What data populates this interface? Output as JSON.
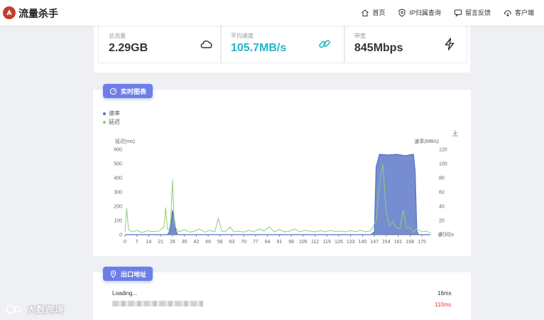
{
  "header": {
    "brand": "流量杀手",
    "nav": [
      {
        "label": "首页",
        "icon": "home-icon"
      },
      {
        "label": "IP归属查询",
        "icon": "shield-icon"
      },
      {
        "label": "留言反馈",
        "icon": "chat-icon"
      },
      {
        "label": "客户端",
        "icon": "cloud-download-icon"
      }
    ]
  },
  "stats": [
    {
      "label": "总流量",
      "value": "2.29GB",
      "icon": "cloud-icon",
      "color": "#333333"
    },
    {
      "label": "平均速度",
      "value": "105.7MB/s",
      "icon": "link-icon",
      "color": "#27b3c9"
    },
    {
      "label": "带宽",
      "value": "845Mbps",
      "icon": "lightning-icon",
      "color": "#333333"
    }
  ],
  "realtime": {
    "title": "实时图表",
    "legend": [
      {
        "name": "速率",
        "color": "#5470c6"
      },
      {
        "name": "延迟",
        "color": "#91cc75"
      }
    ],
    "download_icon": "download-icon"
  },
  "chart_data": {
    "type": "line",
    "left_axis_label": "延迟(ms)",
    "right_axis_label": "速率(MB/s)",
    "x_axis_label": "(时间)s",
    "x_ticks": [
      0,
      7,
      14,
      21,
      28,
      35,
      42,
      49,
      56,
      63,
      70,
      77,
      84,
      91,
      98,
      105,
      112,
      119,
      126,
      133,
      140,
      147,
      154,
      161,
      168,
      175
    ],
    "y_left": {
      "min": 0,
      "max": 600,
      "ticks": [
        0,
        100,
        200,
        300,
        400,
        500,
        600
      ]
    },
    "y_right": {
      "min": 0,
      "max": 120,
      "ticks": [
        0,
        20,
        40,
        60,
        80,
        100,
        120
      ]
    },
    "series": [
      {
        "name": "速率",
        "axis": "right",
        "color": "#5470c6",
        "area": true,
        "points": [
          [
            0,
            0
          ],
          [
            25,
            0
          ],
          [
            26,
            3
          ],
          [
            27,
            12
          ],
          [
            28,
            34
          ],
          [
            29,
            22
          ],
          [
            30,
            6
          ],
          [
            31,
            0
          ],
          [
            145,
            0
          ],
          [
            147,
            4
          ],
          [
            148,
            95
          ],
          [
            150,
            113
          ],
          [
            155,
            112
          ],
          [
            160,
            113
          ],
          [
            165,
            111
          ],
          [
            170,
            113
          ],
          [
            171,
            90
          ],
          [
            172,
            5
          ],
          [
            173,
            0
          ],
          [
            180,
            0
          ]
        ]
      },
      {
        "name": "延迟",
        "axis": "left",
        "color": "#91cc75",
        "area": false,
        "points": [
          [
            0,
            18
          ],
          [
            1,
            185
          ],
          [
            2,
            40
          ],
          [
            4,
            20
          ],
          [
            7,
            30
          ],
          [
            10,
            15
          ],
          [
            13,
            28
          ],
          [
            16,
            22
          ],
          [
            20,
            25
          ],
          [
            23,
            55
          ],
          [
            24,
            190
          ],
          [
            25,
            40
          ],
          [
            26,
            30
          ],
          [
            27,
            110
          ],
          [
            28,
            385
          ],
          [
            29,
            90
          ],
          [
            30,
            45
          ],
          [
            32,
            20
          ],
          [
            35,
            35
          ],
          [
            38,
            18
          ],
          [
            41,
            25
          ],
          [
            44,
            40
          ],
          [
            47,
            18
          ],
          [
            50,
            30
          ],
          [
            53,
            20
          ],
          [
            55,
            115
          ],
          [
            57,
            25
          ],
          [
            59,
            20
          ],
          [
            62,
            55
          ],
          [
            64,
            20
          ],
          [
            67,
            25
          ],
          [
            70,
            18
          ],
          [
            73,
            30
          ],
          [
            76,
            20
          ],
          [
            79,
            40
          ],
          [
            82,
            25
          ],
          [
            85,
            55
          ],
          [
            88,
            20
          ],
          [
            91,
            35
          ],
          [
            94,
            20
          ],
          [
            97,
            25
          ],
          [
            100,
            40
          ],
          [
            103,
            20
          ],
          [
            106,
            30
          ],
          [
            109,
            25
          ],
          [
            112,
            20
          ],
          [
            115,
            28
          ],
          [
            118,
            20
          ],
          [
            121,
            30
          ],
          [
            124,
            22
          ],
          [
            127,
            25
          ],
          [
            130,
            20
          ],
          [
            133,
            28
          ],
          [
            136,
            22
          ],
          [
            139,
            30
          ],
          [
            142,
            20
          ],
          [
            145,
            28
          ],
          [
            148,
            100
          ],
          [
            150,
            350
          ],
          [
            152,
            495
          ],
          [
            154,
            150
          ],
          [
            156,
            60
          ],
          [
            158,
            95
          ],
          [
            160,
            50
          ],
          [
            162,
            40
          ],
          [
            164,
            170
          ],
          [
            166,
            45
          ],
          [
            168,
            50
          ],
          [
            170,
            15
          ],
          [
            172,
            40
          ],
          [
            175,
            20
          ],
          [
            178,
            25
          ],
          [
            180,
            10
          ]
        ]
      }
    ]
  },
  "exit": {
    "title": "出口地址",
    "rows": [
      {
        "left": "Loading...",
        "right": "16ms",
        "right_color": "#333333"
      },
      {
        "left": "",
        "right": "110ms",
        "right_color": "#e23c3c"
      }
    ]
  },
  "watermark": "大数跨境"
}
